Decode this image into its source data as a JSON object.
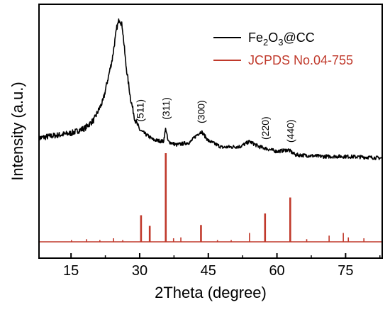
{
  "chart_data": {
    "type": "line",
    "xlabel": "2Theta (degree)",
    "ylabel": "Intensity (a.u.)",
    "xlim": [
      8,
      83
    ],
    "xticks": [
      15,
      30,
      45,
      60,
      75
    ],
    "xtick_labels": [
      "15",
      "30",
      "45",
      "60",
      "75"
    ],
    "y_tick_labels_shown": false,
    "legend_position": "top-right",
    "series": [
      {
        "name": "Fe2O3@CC",
        "legend_label": {
          "base": "Fe",
          "sub1": "2",
          "mid": "O",
          "sub2": "3",
          "tail": "@CC"
        },
        "color": "#000000",
        "kind": "noisy-xrd",
        "key_points": [
          [
            8,
            0.6
          ],
          [
            10,
            0.62
          ],
          [
            15,
            0.66
          ],
          [
            18,
            0.72
          ],
          [
            20,
            0.82
          ],
          [
            22,
            1.05
          ],
          [
            24,
            1.55
          ],
          [
            25,
            1.93
          ],
          [
            25.6,
            2.04
          ],
          [
            26.2,
            1.95
          ],
          [
            27,
            1.48
          ],
          [
            28,
            1.08
          ],
          [
            29,
            0.82
          ],
          [
            30,
            0.7
          ],
          [
            33,
            0.58
          ],
          [
            35.2,
            0.56
          ],
          [
            35.7,
            0.72
          ],
          [
            36.2,
            0.56
          ],
          [
            38,
            0.52
          ],
          [
            41,
            0.55
          ],
          [
            42.5,
            0.64
          ],
          [
            43.5,
            0.68
          ],
          [
            45,
            0.57
          ],
          [
            48,
            0.49
          ],
          [
            52,
            0.5
          ],
          [
            54,
            0.56
          ],
          [
            56,
            0.5
          ],
          [
            60,
            0.44
          ],
          [
            62.5,
            0.46
          ],
          [
            64,
            0.4
          ],
          [
            70,
            0.38
          ],
          [
            75,
            0.38
          ],
          [
            80,
            0.37
          ],
          [
            83,
            0.36
          ]
        ]
      },
      {
        "name": "JCPDS No.04-755",
        "color": "#c0392b",
        "kind": "stick",
        "peaks": [
          [
            15.1,
            0.02
          ],
          [
            18.4,
            0.03
          ],
          [
            21.3,
            0.02
          ],
          [
            24.3,
            0.04
          ],
          [
            26.3,
            0.02
          ],
          [
            30.3,
            0.3
          ],
          [
            32.2,
            0.18
          ],
          [
            35.7,
            1.0
          ],
          [
            37.4,
            0.04
          ],
          [
            39.0,
            0.05
          ],
          [
            43.4,
            0.19
          ],
          [
            47.0,
            0.02
          ],
          [
            50.0,
            0.02
          ],
          [
            54.0,
            0.1
          ],
          [
            57.4,
            0.32
          ],
          [
            62.9,
            0.5
          ],
          [
            66.5,
            0.03
          ],
          [
            71.4,
            0.07
          ],
          [
            74.5,
            0.1
          ],
          [
            75.6,
            0.05
          ],
          [
            79.0,
            0.04
          ]
        ]
      }
    ],
    "annotations": [
      {
        "text": "(511)",
        "x": 30.1
      },
      {
        "text": "(311)",
        "x": 35.7
      },
      {
        "text": "(300)",
        "x": 43.4
      },
      {
        "text": "(220)",
        "x": 57.4
      },
      {
        "text": "(440)",
        "x": 62.9
      }
    ]
  }
}
